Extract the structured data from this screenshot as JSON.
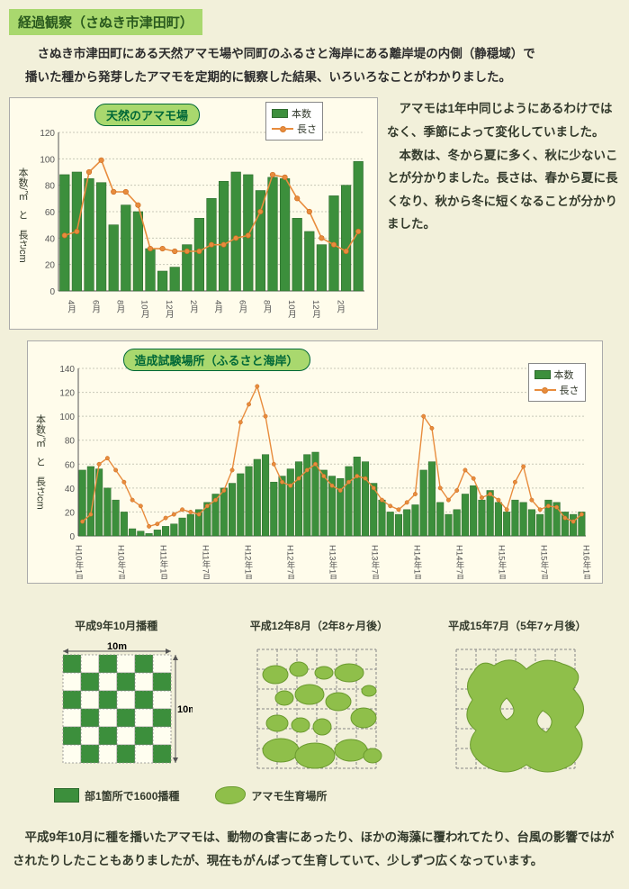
{
  "title": "経過観察（さぬき市津田町）",
  "intro1": "さぬき市津田町にある天然アマモ場や同町のふるさと海岸にある離岸堤の内側（静穏域）で",
  "intro2": "播いた種から発芽したアマモを定期的に観察した結果、いろいろなことがわかりました。",
  "side": {
    "p1": "アマモは1年中同じようにあるわけではなく、季節によって変化していました。",
    "p2": "本数は、冬から夏に多く、秋に少ないことが分かりました。長さは、春から夏に長くなり、秋から冬に短くなることが分かりました。"
  },
  "chart1": {
    "title": "天然のアマモ場",
    "ylabel": "本数/㎡　と　長さcm",
    "legend_count": "本数",
    "legend_length": "長さ",
    "yticks": [
      0,
      20,
      40,
      60,
      80,
      100,
      120
    ],
    "xlabels": [
      "4月",
      "6月",
      "8月",
      "10月",
      "12月",
      "2月",
      "4月",
      "6月",
      "8月",
      "10月",
      "12月",
      "2月"
    ],
    "bars": [
      88,
      90,
      85,
      82,
      50,
      65,
      60,
      32,
      15,
      18,
      35,
      55,
      70,
      83,
      90,
      88,
      76,
      86,
      85,
      55,
      45,
      35,
      72,
      80,
      98
    ],
    "line": [
      42,
      45,
      90,
      99,
      75,
      75,
      65,
      32,
      32,
      30,
      30,
      30,
      35,
      35,
      40,
      42,
      60,
      88,
      86,
      70,
      60,
      40,
      35,
      30,
      45
    ],
    "bar_color": "#3c8f3c",
    "bar_border": "#2e6b2e",
    "line_color": "#e88c3d",
    "bg": "#fffceb",
    "grid_color": "#c8c8b8"
  },
  "chart2": {
    "title": "造成試験場所（ふるさと海岸）",
    "ylabel": "本数/㎡　と　長さcm",
    "legend_count": "本数",
    "legend_length": "長さ",
    "yticks": [
      0,
      20,
      40,
      60,
      80,
      100,
      120,
      140
    ],
    "xlabels": [
      "H10年1月",
      "H10年7月",
      "H11年1月",
      "H11年7月",
      "H12年1月",
      "H12年7月",
      "H13年1月",
      "H13年7月",
      "H14年1月",
      "H14年7月",
      "H15年1月",
      "H15年7月",
      "H16年1月"
    ],
    "bars": [
      55,
      58,
      56,
      40,
      30,
      20,
      6,
      4,
      2,
      5,
      8,
      10,
      15,
      18,
      22,
      28,
      35,
      40,
      44,
      52,
      58,
      64,
      68,
      45,
      50,
      56,
      62,
      68,
      70,
      55,
      50,
      48,
      58,
      66,
      62,
      44,
      30,
      20,
      18,
      22,
      26,
      55,
      62,
      28,
      18,
      22,
      35,
      42,
      30,
      38,
      28,
      20,
      30,
      28,
      22,
      18,
      30,
      28,
      20,
      18,
      20
    ],
    "line": [
      12,
      18,
      60,
      65,
      55,
      45,
      30,
      25,
      8,
      10,
      15,
      18,
      22,
      20,
      18,
      25,
      30,
      38,
      55,
      95,
      110,
      125,
      100,
      60,
      45,
      42,
      48,
      55,
      60,
      50,
      42,
      38,
      45,
      50,
      48,
      40,
      30,
      25,
      22,
      28,
      35,
      100,
      90,
      40,
      30,
      38,
      55,
      48,
      32,
      35,
      30,
      22,
      45,
      58,
      30,
      22,
      25,
      24,
      15,
      12,
      18
    ],
    "bar_color": "#3c8f3c",
    "bar_border": "#2e6b2e",
    "line_color": "#e88c3d",
    "bg": "#fffceb",
    "grid_color": "#c8c8b8"
  },
  "grids": {
    "g1_title": "平成9年10月播種",
    "g2_title": "平成12年8月（2年8ヶ月後）",
    "g3_title": "平成15年7月（5年7ヶ月後）",
    "dim_label_h": "10m",
    "dim_label_v": "10m",
    "legend1": "部1箇所で1600播種",
    "legend2": "アマモ生育場所",
    "cell_fill": "#3c8f3c",
    "blob_fill": "#8fbf4a",
    "blob_border": "#6a9a2e"
  },
  "footer": "平成9年10月に種を播いたアマモは、動物の食害にあったり、ほかの海藻に覆われてたり、台風の影響ではがされたりしたこともありましたが、現在もがんばって生育していて、少しずつ広くなっています。"
}
